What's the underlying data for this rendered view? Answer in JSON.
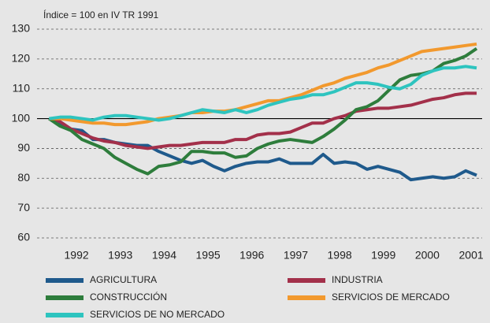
{
  "chart_data": {
    "type": "line",
    "annotation": "Índice = 100 en IV TR 1991",
    "x": [
      1991.875,
      1992.125,
      1992.375,
      1992.625,
      1992.875,
      1993.125,
      1993.375,
      1993.625,
      1993.875,
      1994.125,
      1994.375,
      1994.625,
      1994.875,
      1995.125,
      1995.375,
      1995.625,
      1995.875,
      1996.125,
      1996.375,
      1996.625,
      1996.875,
      1997.125,
      1997.375,
      1997.625,
      1997.875,
      1998.125,
      1998.375,
      1998.625,
      1998.875,
      1999.125,
      1999.375,
      1999.625,
      1999.875,
      2000.125,
      2000.375,
      2000.625,
      2000.875,
      2001.125,
      2001.375,
      2001.625
    ],
    "xlim": [
      1991.6,
      2001.75
    ],
    "xticks": [
      {
        "value": 1992.5,
        "label": "1992"
      },
      {
        "value": 1993.5,
        "label": "1993"
      },
      {
        "value": 1994.5,
        "label": "1994"
      },
      {
        "value": 1995.5,
        "label": "1995"
      },
      {
        "value": 1996.5,
        "label": "1996"
      },
      {
        "value": 1997.5,
        "label": "1997"
      },
      {
        "value": 1998.5,
        "label": "1998"
      },
      {
        "value": 1999.5,
        "label": "1999"
      },
      {
        "value": 2000.5,
        "label": "2000"
      },
      {
        "value": 2001.5,
        "label": "2001"
      }
    ],
    "ylim": [
      60,
      130
    ],
    "yticks": [
      60,
      70,
      80,
      90,
      100,
      110,
      120,
      130
    ],
    "grid": true,
    "reference_line": 100,
    "series": [
      {
        "name": "AGRICULTURA",
        "color": "#1f5a8c",
        "values": [
          100,
          98,
          96.5,
          96,
          93,
          93,
          92,
          91.5,
          91,
          91,
          89,
          87.5,
          86,
          85,
          86,
          84,
          82.5,
          84,
          85,
          85.5,
          85.5,
          86.5,
          85,
          85,
          85,
          88,
          85,
          85.5,
          85,
          83,
          84,
          83,
          82,
          79.5,
          80,
          80.5,
          80,
          80.5,
          82.5,
          81
        ]
      },
      {
        "name": "INDUSTRIA",
        "color": "#a3304a",
        "values": [
          100,
          99,
          96.5,
          95,
          93.5,
          92.5,
          92,
          91,
          90.5,
          90,
          90.5,
          91,
          91,
          91.5,
          92,
          92,
          92,
          93,
          93,
          94.5,
          95,
          95,
          95.5,
          97,
          98.5,
          98.5,
          100,
          101,
          102.5,
          103,
          103.5,
          103.5,
          104,
          104.5,
          105.5,
          106.5,
          107,
          108,
          108.5,
          108.5
        ]
      },
      {
        "name": "CONSTRUCCIÓN",
        "color": "#2e7d3c",
        "values": [
          100,
          97.5,
          96,
          93,
          91.5,
          90,
          87,
          85,
          83,
          81.5,
          84,
          84.5,
          85.5,
          89,
          89,
          88.5,
          88.5,
          87,
          87.5,
          90,
          91.5,
          92.5,
          93,
          92.5,
          92,
          94,
          96.5,
          99.5,
          103,
          104,
          106,
          109.5,
          113,
          114.5,
          115,
          116,
          118.5,
          119.5,
          121,
          123.5
        ]
      },
      {
        "name": "SERVICIOS DE MERCADO",
        "color": "#f2992e",
        "values": [
          100,
          100,
          99.5,
          99,
          98.5,
          98.5,
          98,
          98,
          98.5,
          99,
          100,
          100.5,
          101,
          102,
          102,
          102.5,
          102.5,
          103,
          104,
          105,
          106,
          106,
          107,
          108,
          109.5,
          111,
          112,
          113.5,
          114.5,
          115.5,
          117,
          118,
          119.5,
          121,
          122.5,
          123,
          123.5,
          124,
          124.5,
          125
        ]
      },
      {
        "name": "SERVICIOS DE NO MERCADO",
        "color": "#2ec4bf",
        "values": [
          100,
          100.5,
          100.5,
          100,
          99.5,
          100.5,
          101,
          101,
          100.5,
          100,
          99.5,
          100,
          101,
          102,
          103,
          102.5,
          102,
          103,
          102,
          103,
          104.5,
          105.5,
          106.5,
          107,
          108,
          108,
          109,
          110.5,
          112,
          112,
          111.5,
          110.5,
          110,
          111.5,
          114.5,
          116,
          117,
          117,
          117.5,
          117
        ]
      }
    ]
  }
}
